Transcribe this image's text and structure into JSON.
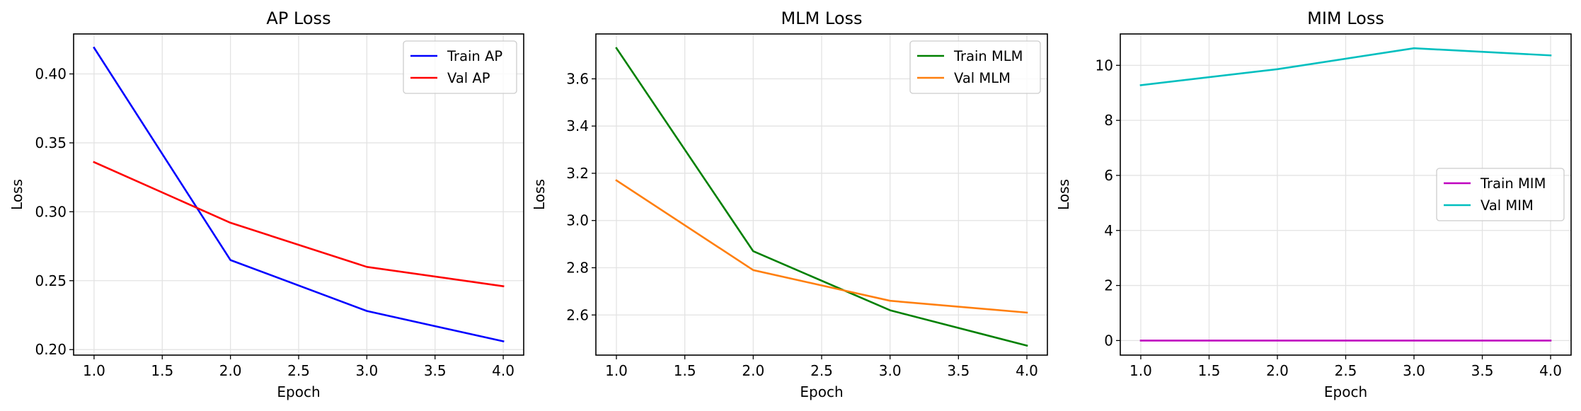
{
  "chart_data": [
    {
      "type": "line",
      "title": "AP Loss",
      "xlabel": "Epoch",
      "ylabel": "Loss",
      "x": [
        1,
        2,
        3,
        4
      ],
      "xlim": [
        0.85,
        4.15
      ],
      "ylim": [
        0.196,
        0.429
      ],
      "xticks": [
        1.0,
        1.5,
        2.0,
        2.5,
        3.0,
        3.5,
        4.0
      ],
      "xtick_labels": [
        "1.0",
        "1.5",
        "2.0",
        "2.5",
        "3.0",
        "3.5",
        "4.0"
      ],
      "yticks": [
        0.2,
        0.25,
        0.3,
        0.35,
        0.4
      ],
      "ytick_labels": [
        "0.20",
        "0.25",
        "0.30",
        "0.35",
        "0.40"
      ],
      "grid": true,
      "legend_position": "upper right",
      "series": [
        {
          "name": "Train AP",
          "color": "#0000ff",
          "values": [
            0.419,
            0.265,
            0.228,
            0.206
          ]
        },
        {
          "name": "Val AP",
          "color": "#ff0000",
          "values": [
            0.336,
            0.292,
            0.26,
            0.246
          ]
        }
      ]
    },
    {
      "type": "line",
      "title": "MLM Loss",
      "xlabel": "Epoch",
      "ylabel": "Loss",
      "x": [
        1,
        2,
        3,
        4
      ],
      "xlim": [
        0.85,
        4.15
      ],
      "ylim": [
        2.43,
        3.79
      ],
      "xticks": [
        1.0,
        1.5,
        2.0,
        2.5,
        3.0,
        3.5,
        4.0
      ],
      "xtick_labels": [
        "1.0",
        "1.5",
        "2.0",
        "2.5",
        "3.0",
        "3.5",
        "4.0"
      ],
      "yticks": [
        2.6,
        2.8,
        3.0,
        3.2,
        3.4,
        3.6
      ],
      "ytick_labels": [
        "2.6",
        "2.8",
        "3.0",
        "3.2",
        "3.4",
        "3.6"
      ],
      "grid": true,
      "legend_position": "upper right",
      "series": [
        {
          "name": "Train MLM",
          "color": "#008000",
          "values": [
            3.73,
            2.87,
            2.62,
            2.47
          ]
        },
        {
          "name": "Val MLM",
          "color": "#ff7f0e",
          "values": [
            3.17,
            2.79,
            2.66,
            2.61
          ]
        }
      ]
    },
    {
      "type": "line",
      "title": "MIM Loss",
      "xlabel": "Epoch",
      "ylabel": "Loss",
      "x": [
        1,
        2,
        3,
        4
      ],
      "xlim": [
        0.85,
        4.15
      ],
      "ylim": [
        -0.53,
        11.14
      ],
      "xticks": [
        1.0,
        1.5,
        2.0,
        2.5,
        3.0,
        3.5,
        4.0
      ],
      "xtick_labels": [
        "1.0",
        "1.5",
        "2.0",
        "2.5",
        "3.0",
        "3.5",
        "4.0"
      ],
      "yticks": [
        0,
        2,
        4,
        6,
        8,
        10
      ],
      "ytick_labels": [
        "0",
        "2",
        "4",
        "6",
        "8",
        "10"
      ],
      "grid": true,
      "legend_position": "center right",
      "series": [
        {
          "name": "Train MIM",
          "color": "#bf00bf",
          "values": [
            0.0,
            0.0,
            0.0,
            0.0
          ]
        },
        {
          "name": "Val MIM",
          "color": "#00bfbf",
          "values": [
            9.28,
            9.86,
            10.62,
            10.36
          ]
        }
      ]
    }
  ]
}
